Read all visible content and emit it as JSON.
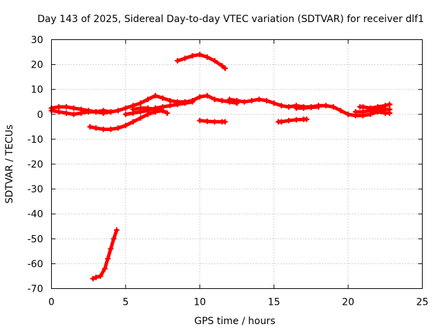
{
  "chart_data": {
    "type": "scatter",
    "title": "Day 143 of 2025, Sidereal Day-to-day VTEC variation (SDTVAR) for receiver dlf1",
    "xlabel": "GPS time / hours",
    "ylabel": "SDTVAR / TECUs",
    "xlim": [
      0,
      25
    ],
    "ylim": [
      -70,
      30
    ],
    "x_ticks": [
      0,
      5,
      10,
      15,
      20,
      25
    ],
    "y_ticks": [
      -70,
      -60,
      -50,
      -40,
      -30,
      -20,
      -10,
      0,
      10,
      20,
      30
    ],
    "grid": true,
    "legend": "none",
    "marker": "plus",
    "color": "#ff0000",
    "series": [
      {
        "name": "arc-1",
        "points": [
          [
            0.0,
            2.5
          ],
          [
            0.5,
            3.0
          ],
          [
            1.0,
            3.0
          ],
          [
            1.5,
            2.5
          ],
          [
            2.0,
            2.0
          ],
          [
            2.5,
            1.5
          ],
          [
            3.0,
            1.0
          ],
          [
            3.5,
            1.5
          ],
          [
            4.0,
            1.0
          ],
          [
            4.5,
            1.5
          ],
          [
            5.0,
            2.5
          ],
          [
            5.5,
            3.5
          ],
          [
            6.0,
            4.5
          ],
          [
            6.5,
            6.0
          ],
          [
            7.0,
            7.5
          ],
          [
            7.5,
            6.5
          ],
          [
            8.0,
            5.5
          ],
          [
            8.5,
            5.0
          ],
          [
            9.0,
            5.0
          ],
          [
            9.5,
            5.5
          ],
          [
            10.0,
            7.0
          ],
          [
            10.5,
            7.5
          ],
          [
            11.0,
            6.0
          ],
          [
            11.5,
            5.5
          ],
          [
            12.0,
            5.0
          ],
          [
            12.5,
            4.5
          ]
        ]
      },
      {
        "name": "arc-2",
        "points": [
          [
            0.0,
            1.5
          ],
          [
            0.5,
            1.0
          ],
          [
            1.0,
            0.5
          ],
          [
            1.5,
            0.0
          ],
          [
            2.0,
            0.5
          ],
          [
            2.5,
            1.0
          ],
          [
            3.0,
            1.0
          ],
          [
            3.5,
            0.5
          ],
          [
            4.0,
            1.0
          ]
        ]
      },
      {
        "name": "arc-3",
        "points": [
          [
            5.0,
            0.0
          ],
          [
            5.5,
            0.5
          ],
          [
            6.0,
            1.0
          ],
          [
            6.5,
            1.5
          ],
          [
            7.0,
            2.5
          ],
          [
            7.5,
            3.0
          ],
          [
            8.0,
            3.5
          ],
          [
            8.5,
            4.0
          ],
          [
            9.0,
            4.5
          ],
          [
            9.5,
            5.0
          ]
        ]
      },
      {
        "name": "arc-4",
        "points": [
          [
            5.5,
            2.0
          ],
          [
            6.0,
            2.5
          ],
          [
            6.5,
            2.5
          ],
          [
            7.0,
            2.0
          ],
          [
            7.5,
            1.5
          ],
          [
            7.8,
            0.5
          ]
        ]
      },
      {
        "name": "arc-5",
        "points": [
          [
            2.6,
            -5.0
          ],
          [
            3.0,
            -5.5
          ],
          [
            3.5,
            -6.0
          ],
          [
            4.0,
            -6.0
          ],
          [
            4.5,
            -5.5
          ],
          [
            5.0,
            -4.5
          ],
          [
            5.5,
            -3.0
          ],
          [
            6.0,
            -1.5
          ],
          [
            6.5,
            0.0
          ],
          [
            7.0,
            1.0
          ],
          [
            7.5,
            1.5
          ]
        ]
      },
      {
        "name": "arc-6",
        "points": [
          [
            8.5,
            21.5
          ],
          [
            9.0,
            22.5
          ],
          [
            9.5,
            23.5
          ],
          [
            10.0,
            24.0
          ],
          [
            10.5,
            23.0
          ],
          [
            11.0,
            21.5
          ],
          [
            11.5,
            19.5
          ],
          [
            11.7,
            18.5
          ]
        ]
      },
      {
        "name": "arc-7",
        "points": [
          [
            10.0,
            -2.5
          ],
          [
            10.5,
            -2.8
          ],
          [
            11.0,
            -3.0
          ],
          [
            11.5,
            -3.0
          ],
          [
            11.7,
            -3.0
          ]
        ]
      },
      {
        "name": "arc-8",
        "points": [
          [
            12.0,
            6.0
          ],
          [
            12.5,
            5.5
          ],
          [
            13.0,
            5.0
          ],
          [
            13.5,
            5.5
          ],
          [
            14.0,
            6.0
          ],
          [
            14.5,
            5.5
          ],
          [
            15.0,
            4.5
          ],
          [
            15.5,
            3.5
          ],
          [
            16.0,
            3.0
          ],
          [
            16.5,
            3.5
          ],
          [
            17.0,
            3.0
          ],
          [
            17.5,
            3.0
          ],
          [
            18.0,
            3.5
          ],
          [
            18.5,
            3.5
          ],
          [
            19.0,
            3.0
          ],
          [
            19.5,
            1.5
          ],
          [
            20.0,
            0.0
          ],
          [
            20.5,
            -0.5
          ],
          [
            21.0,
            -0.5
          ],
          [
            21.5,
            0.0
          ],
          [
            22.0,
            1.0
          ],
          [
            22.5,
            0.5
          ],
          [
            22.8,
            0.5
          ]
        ]
      },
      {
        "name": "arc-9",
        "points": [
          [
            15.3,
            -3.0
          ],
          [
            15.5,
            -3.0
          ],
          [
            16.0,
            -2.5
          ],
          [
            16.5,
            -2.2
          ],
          [
            17.0,
            -2.0
          ],
          [
            17.2,
            -2.0
          ]
        ]
      },
      {
        "name": "arc-10",
        "points": [
          [
            16.5,
            2.5
          ],
          [
            17.0,
            2.5
          ],
          [
            17.5,
            2.8
          ],
          [
            18.0,
            3.0
          ]
        ]
      },
      {
        "name": "arc-11",
        "points": [
          [
            20.8,
            3.0
          ],
          [
            21.0,
            3.0
          ],
          [
            21.5,
            2.5
          ],
          [
            22.0,
            3.0
          ],
          [
            22.5,
            3.5
          ],
          [
            22.8,
            4.0
          ]
        ]
      },
      {
        "name": "arc-12",
        "points": [
          [
            20.5,
            1.0
          ],
          [
            21.0,
            1.0
          ],
          [
            21.5,
            1.5
          ],
          [
            22.0,
            2.0
          ],
          [
            22.5,
            2.0
          ],
          [
            22.8,
            2.0
          ]
        ]
      },
      {
        "name": "arc-13",
        "points": [
          [
            2.8,
            -66.0
          ],
          [
            3.0,
            -65.5
          ],
          [
            3.3,
            -65.0
          ],
          [
            3.6,
            -62.0
          ],
          [
            3.8,
            -58.0
          ],
          [
            4.0,
            -54.0
          ],
          [
            4.2,
            -50.0
          ],
          [
            4.4,
            -46.5
          ]
        ]
      }
    ]
  }
}
